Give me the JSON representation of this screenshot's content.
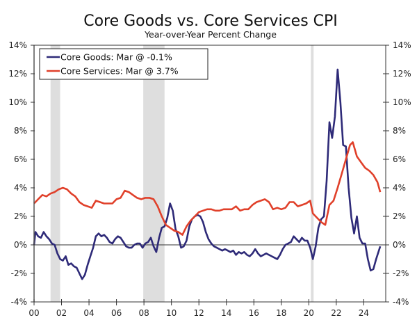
{
  "chart_data": {
    "type": "line",
    "title": "Core Goods vs. Core Services CPI",
    "subtitle": "Year-over-Year Percent Change",
    "xlabel": "",
    "ylabel": "",
    "xlim": [
      2000,
      2025.6
    ],
    "ylim": [
      -4,
      14
    ],
    "x_ticks": [
      2000,
      2002,
      2004,
      2006,
      2008,
      2010,
      2012,
      2014,
      2016,
      2018,
      2020,
      2022,
      2024
    ],
    "x_tick_labels": [
      "00",
      "02",
      "04",
      "06",
      "08",
      "10",
      "12",
      "14",
      "16",
      "18",
      "20",
      "22",
      "24"
    ],
    "y_ticks": [
      -4,
      -2,
      0,
      2,
      4,
      6,
      8,
      10,
      12,
      14
    ],
    "y_tick_labels": [
      "-4%",
      "-2%",
      "0%",
      "2%",
      "4%",
      "6%",
      "8%",
      "10%",
      "12%",
      "14%"
    ],
    "grid": false,
    "zero_line": true,
    "legend_position": "top-left",
    "recessions": [
      [
        2001.2,
        2001.9
      ],
      [
        2007.95,
        2009.5
      ],
      [
        2020.15,
        2020.35
      ]
    ],
    "recession_color": "#dedede",
    "series": [
      {
        "name": "Core Goods: Mar @ -0.1%",
        "color": "#2e2a78",
        "x": [
          2000.0,
          2000.1,
          2000.3,
          2000.5,
          2000.7,
          2000.9,
          2001.1,
          2001.3,
          2001.5,
          2001.7,
          2001.9,
          2002.1,
          2002.3,
          2002.5,
          2002.7,
          2002.9,
          2003.1,
          2003.3,
          2003.5,
          2003.7,
          2003.9,
          2004.1,
          2004.3,
          2004.5,
          2004.7,
          2004.9,
          2005.1,
          2005.3,
          2005.5,
          2005.7,
          2005.9,
          2006.1,
          2006.3,
          2006.5,
          2006.7,
          2006.9,
          2007.1,
          2007.3,
          2007.5,
          2007.7,
          2007.9,
          2008.1,
          2008.3,
          2008.5,
          2008.7,
          2008.9,
          2009.1,
          2009.3,
          2009.5,
          2009.7,
          2009.9,
          2010.1,
          2010.3,
          2010.5,
          2010.7,
          2010.9,
          2011.1,
          2011.3,
          2011.5,
          2011.7,
          2011.9,
          2012.1,
          2012.3,
          2012.5,
          2012.7,
          2012.9,
          2013.1,
          2013.3,
          2013.5,
          2013.7,
          2013.9,
          2014.1,
          2014.3,
          2014.5,
          2014.7,
          2014.9,
          2015.1,
          2015.3,
          2015.5,
          2015.7,
          2015.9,
          2016.1,
          2016.3,
          2016.5,
          2016.7,
          2016.9,
          2017.1,
          2017.3,
          2017.5,
          2017.7,
          2017.9,
          2018.1,
          2018.3,
          2018.5,
          2018.7,
          2018.9,
          2019.1,
          2019.3,
          2019.5,
          2019.7,
          2019.9,
          2020.1,
          2020.3,
          2020.5,
          2020.7,
          2020.9,
          2021.1,
          2021.3,
          2021.5,
          2021.7,
          2021.9,
          2022.1,
          2022.3,
          2022.5,
          2022.7,
          2022.9,
          2023.1,
          2023.3,
          2023.5,
          2023.7,
          2023.9,
          2024.1,
          2024.3,
          2024.5,
          2024.7,
          2024.9,
          2025.2
        ],
        "values": [
          0.0,
          0.9,
          0.6,
          0.5,
          0.9,
          0.6,
          0.4,
          0.1,
          0.0,
          -0.6,
          -1.0,
          -1.1,
          -0.8,
          -1.4,
          -1.3,
          -1.5,
          -1.6,
          -2.0,
          -2.4,
          -2.1,
          -1.4,
          -0.8,
          -0.2,
          0.6,
          0.8,
          0.6,
          0.7,
          0.5,
          0.2,
          0.1,
          0.4,
          0.6,
          0.5,
          0.2,
          -0.1,
          -0.2,
          -0.2,
          0.0,
          0.1,
          0.1,
          -0.2,
          0.1,
          0.2,
          0.5,
          -0.1,
          -0.5,
          0.5,
          1.2,
          1.3,
          1.9,
          2.9,
          2.4,
          1.1,
          0.6,
          -0.2,
          -0.1,
          0.3,
          1.3,
          1.8,
          2.0,
          2.1,
          2.0,
          1.6,
          0.9,
          0.4,
          0.1,
          -0.1,
          -0.2,
          -0.3,
          -0.4,
          -0.3,
          -0.4,
          -0.5,
          -0.4,
          -0.7,
          -0.5,
          -0.6,
          -0.5,
          -0.7,
          -0.8,
          -0.6,
          -0.3,
          -0.6,
          -0.8,
          -0.7,
          -0.6,
          -0.7,
          -0.8,
          -0.9,
          -1.0,
          -0.7,
          -0.3,
          0.0,
          0.1,
          0.2,
          0.6,
          0.4,
          0.2,
          0.5,
          0.3,
          0.3,
          -0.2,
          -1.0,
          -0.1,
          1.2,
          1.8,
          2.0,
          4.5,
          8.6,
          7.5,
          9.0,
          12.3,
          10.0,
          7.0,
          6.9,
          4.0,
          1.9,
          0.8,
          2.0,
          0.5,
          0.1,
          0.1,
          -1.0,
          -1.8,
          -1.7,
          -1.0,
          -0.1
        ],
        "last_label": "Mar @ -0.1%"
      },
      {
        "name": "Core Services: Mar @ 3.7%",
        "color": "#e0402a",
        "x": [
          2000.0,
          2000.3,
          2000.6,
          2000.9,
          2001.2,
          2001.5,
          2001.8,
          2002.1,
          2002.4,
          2002.7,
          2003.0,
          2003.3,
          2003.6,
          2003.9,
          2004.2,
          2004.5,
          2004.8,
          2005.1,
          2005.4,
          2005.7,
          2006.0,
          2006.3,
          2006.6,
          2006.9,
          2007.2,
          2007.5,
          2007.8,
          2008.1,
          2008.4,
          2008.7,
          2009.0,
          2009.3,
          2009.6,
          2009.9,
          2010.2,
          2010.5,
          2010.8,
          2011.1,
          2011.4,
          2011.7,
          2012.0,
          2012.3,
          2012.6,
          2012.9,
          2013.2,
          2013.5,
          2013.8,
          2014.1,
          2014.4,
          2014.7,
          2015.0,
          2015.3,
          2015.6,
          2015.9,
          2016.2,
          2016.5,
          2016.8,
          2017.1,
          2017.4,
          2017.7,
          2018.0,
          2018.3,
          2018.6,
          2018.9,
          2019.2,
          2019.5,
          2019.8,
          2020.1,
          2020.3,
          2020.6,
          2020.9,
          2021.2,
          2021.5,
          2021.8,
          2022.1,
          2022.4,
          2022.7,
          2023.0,
          2023.2,
          2023.5,
          2023.8,
          2024.1,
          2024.4,
          2024.7,
          2025.0,
          2025.2
        ],
        "values": [
          2.9,
          3.2,
          3.5,
          3.4,
          3.6,
          3.7,
          3.9,
          4.0,
          3.9,
          3.6,
          3.4,
          3.0,
          2.8,
          2.7,
          2.6,
          3.1,
          3.0,
          2.9,
          2.9,
          2.9,
          3.2,
          3.3,
          3.8,
          3.7,
          3.5,
          3.3,
          3.2,
          3.3,
          3.3,
          3.2,
          2.7,
          2.0,
          1.4,
          1.2,
          1.0,
          0.9,
          0.7,
          1.3,
          1.7,
          2.0,
          2.3,
          2.4,
          2.5,
          2.5,
          2.4,
          2.4,
          2.5,
          2.5,
          2.5,
          2.7,
          2.4,
          2.5,
          2.5,
          2.8,
          3.0,
          3.1,
          3.2,
          3.0,
          2.5,
          2.6,
          2.5,
          2.6,
          3.0,
          3.0,
          2.7,
          2.8,
          2.9,
          3.1,
          2.2,
          1.9,
          1.6,
          1.4,
          2.8,
          3.1,
          4.0,
          5.0,
          6.0,
          7.0,
          7.2,
          6.2,
          5.8,
          5.4,
          5.2,
          4.9,
          4.4,
          3.7
        ],
        "last_label": "Mar @ 3.7%"
      }
    ]
  }
}
